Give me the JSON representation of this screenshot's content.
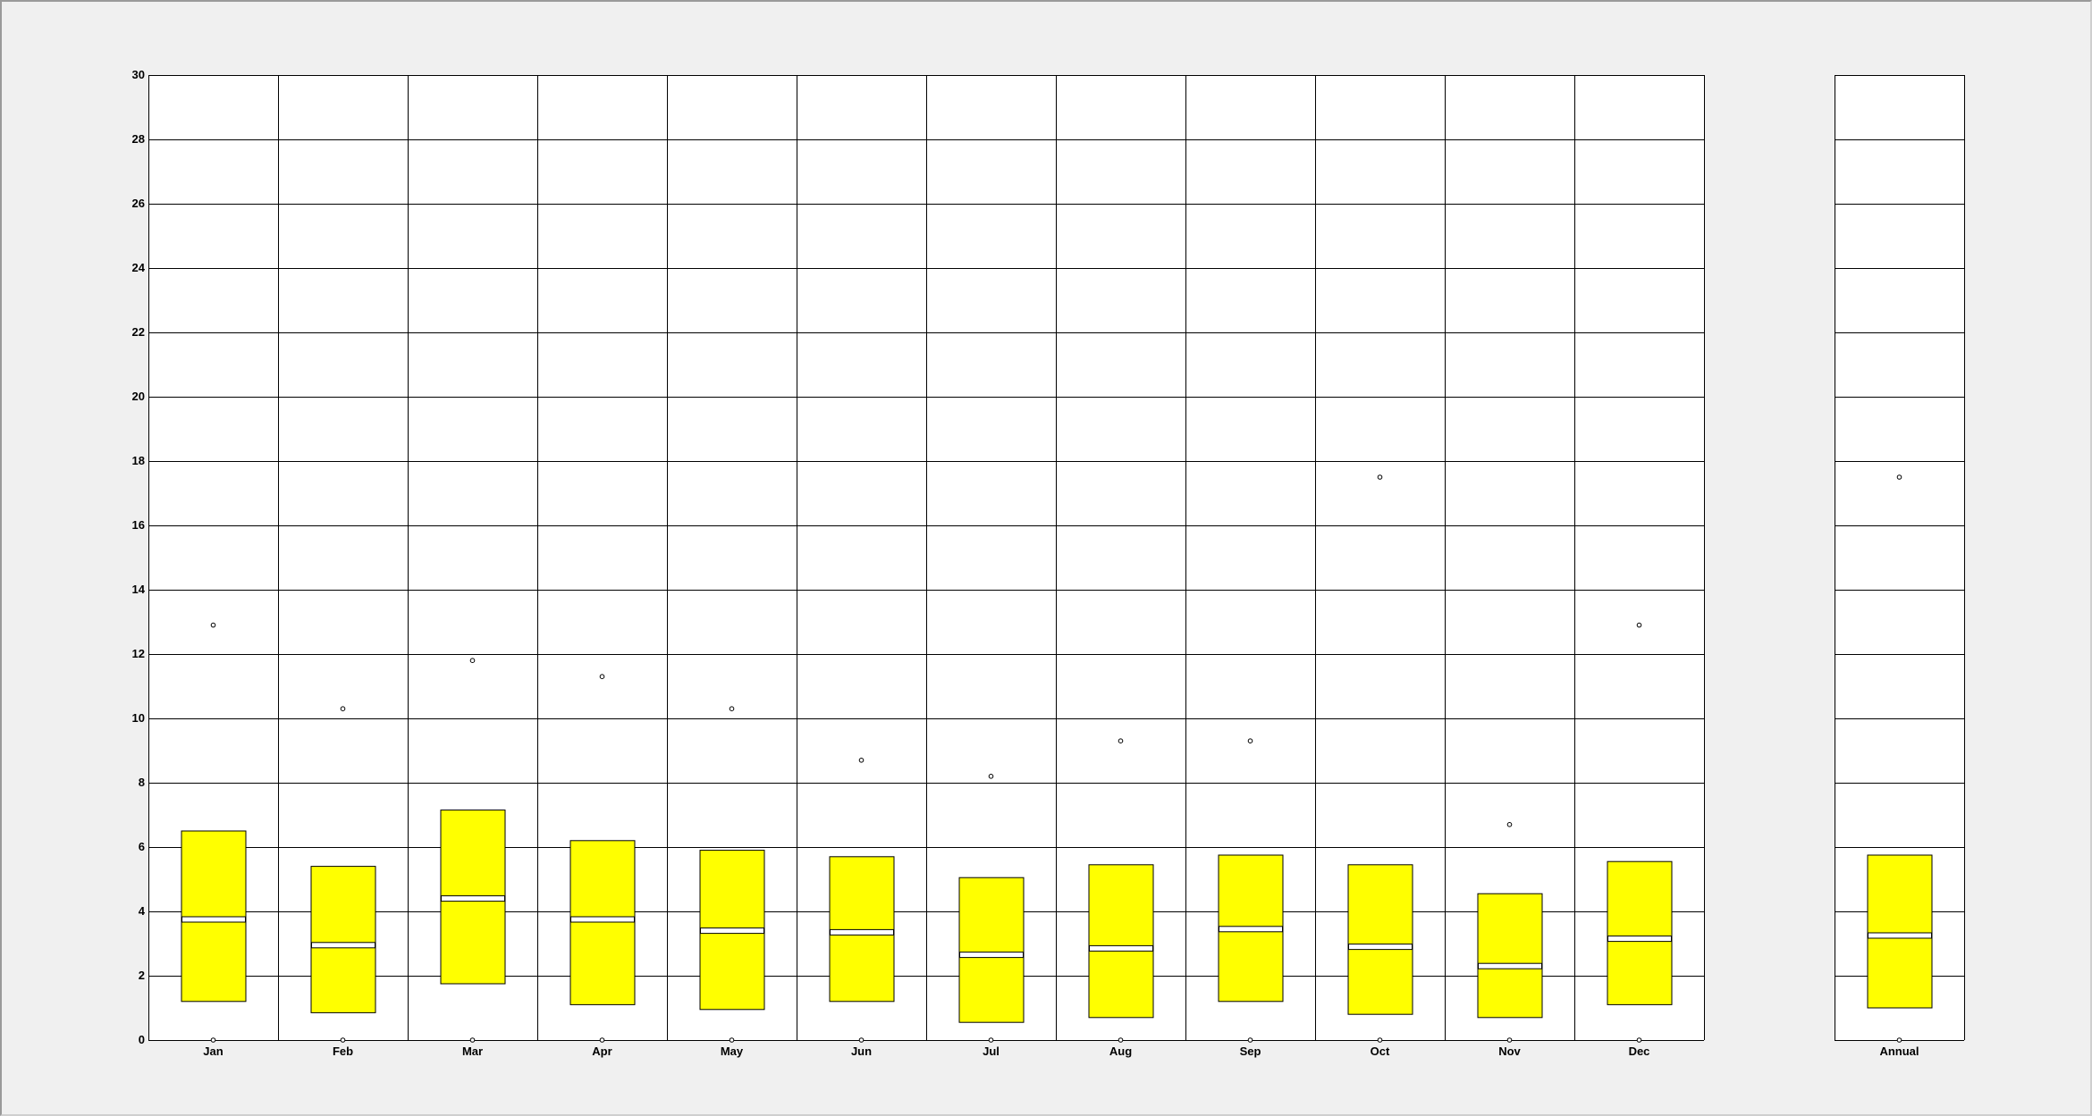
{
  "chart_data": {
    "type": "boxplot",
    "title": "",
    "xlabel": "",
    "ylabel": "",
    "ylim": [
      0,
      30
    ],
    "yticks": [
      0,
      2,
      4,
      6,
      8,
      10,
      12,
      14,
      16,
      18,
      20,
      22,
      24,
      26,
      28,
      30
    ],
    "grid": true,
    "colors": {
      "box_fill": "#ffff00",
      "box_edge": "#000000",
      "median_line": "#ffffff",
      "grid": "#000000",
      "plot_bg": "#ffffff",
      "page_bg": "#f0f0f0"
    },
    "categories": [
      "Jan",
      "Feb",
      "Mar",
      "Apr",
      "May",
      "Jun",
      "Jul",
      "Aug",
      "Sep",
      "Oct",
      "Nov",
      "Dec"
    ],
    "monthly": [
      {
        "label": "Jan",
        "q1": 1.2,
        "median": 3.75,
        "q3": 6.5,
        "min": 0.0,
        "max": 12.9
      },
      {
        "label": "Feb",
        "q1": 0.85,
        "median": 2.95,
        "q3": 5.4,
        "min": 0.0,
        "max": 10.3
      },
      {
        "label": "Mar",
        "q1": 1.75,
        "median": 4.4,
        "q3": 7.15,
        "min": 0.0,
        "max": 11.8
      },
      {
        "label": "Apr",
        "q1": 1.1,
        "median": 3.75,
        "q3": 6.2,
        "min": 0.0,
        "max": 11.3
      },
      {
        "label": "May",
        "q1": 0.95,
        "median": 3.4,
        "q3": 5.9,
        "min": 0.0,
        "max": 10.3
      },
      {
        "label": "Jun",
        "q1": 1.2,
        "median": 3.35,
        "q3": 5.7,
        "min": 0.0,
        "max": 8.7
      },
      {
        "label": "Jul",
        "q1": 0.55,
        "median": 2.65,
        "q3": 5.05,
        "min": 0.0,
        "max": 8.2
      },
      {
        "label": "Aug",
        "q1": 0.7,
        "median": 2.85,
        "q3": 5.45,
        "min": 0.0,
        "max": 9.3
      },
      {
        "label": "Sep",
        "q1": 1.2,
        "median": 3.45,
        "q3": 5.75,
        "min": 0.0,
        "max": 9.3
      },
      {
        "label": "Oct",
        "q1": 0.8,
        "median": 2.9,
        "q3": 5.45,
        "min": 0.0,
        "max": 17.5
      },
      {
        "label": "Nov",
        "q1": 0.7,
        "median": 2.3,
        "q3": 4.55,
        "min": 0.0,
        "max": 6.7
      },
      {
        "label": "Dec",
        "q1": 1.1,
        "median": 3.15,
        "q3": 5.55,
        "min": 0.0,
        "max": 12.9
      }
    ],
    "annual": {
      "label": "Annual",
      "q1": 1.0,
      "median": 3.25,
      "q3": 5.75,
      "min": 0.0,
      "max": 17.5
    }
  }
}
